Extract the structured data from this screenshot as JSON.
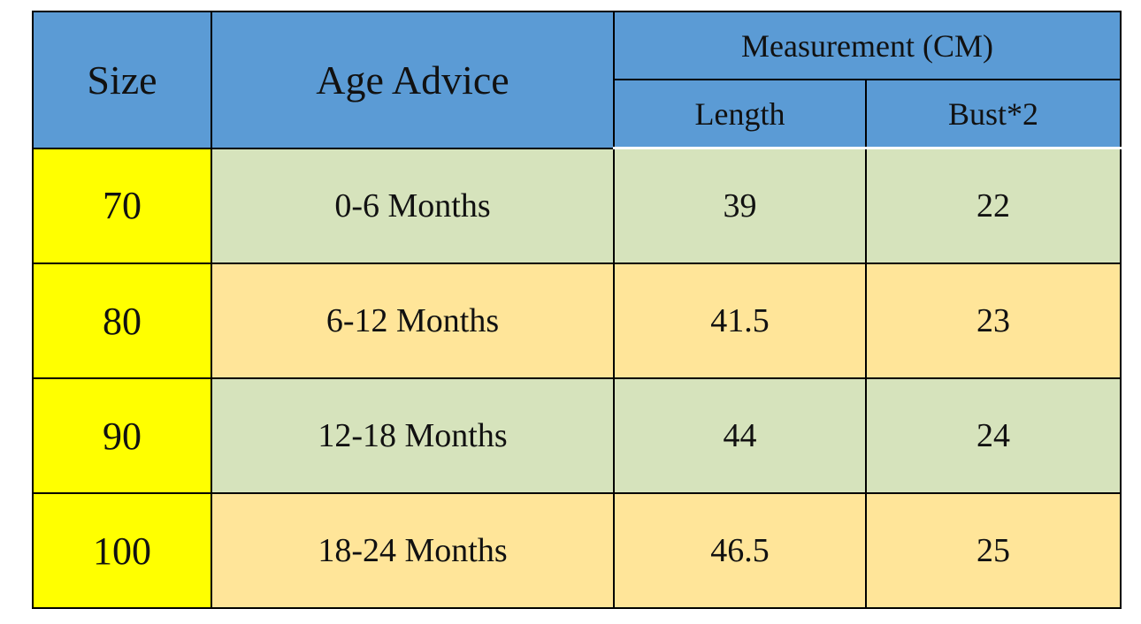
{
  "table": {
    "header": {
      "size": "Size",
      "age": "Age Advice",
      "measurement": "Measurement (CM)",
      "length": "Length",
      "bust": "Bust*2"
    },
    "rows": [
      [
        70,
        "0-6 Months",
        39,
        22
      ],
      [
        80,
        "6-12 Months",
        41.5,
        23
      ],
      [
        90,
        "12-18 Months",
        44,
        24
      ],
      [
        100,
        "18-24 Months",
        46.5,
        25
      ]
    ]
  }
}
